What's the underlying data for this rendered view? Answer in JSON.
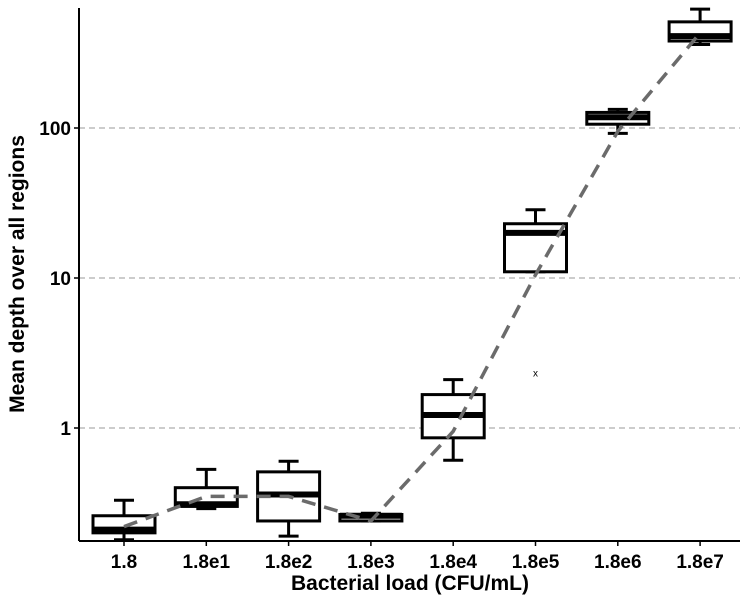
{
  "chart_data": {
    "type": "boxplot",
    "title": "",
    "xlabel": "Bacterial load (CFU/mL)",
    "ylabel": "Mean depth over all regions",
    "y_scale": "log10",
    "ylim": [
      0.18,
      700
    ],
    "y_ticks": [
      {
        "value": 1,
        "label": "1"
      },
      {
        "value": 10,
        "label": "10"
      },
      {
        "value": 100,
        "label": "100"
      }
    ],
    "grid": "horizontal-dashed",
    "categories": [
      "1.8",
      "1.8e1",
      "1.8e2",
      "1.8e3",
      "1.8e4",
      "1.8e5",
      "1.8e6",
      "1.8e7"
    ],
    "boxes": [
      {
        "category": "1.8",
        "whisker_low": 0.18,
        "q1": 0.2,
        "median": 0.21,
        "q3": 0.26,
        "whisker_high": 0.33
      },
      {
        "category": "1.8e1",
        "whisker_low": 0.29,
        "q1": 0.3,
        "median": 0.31,
        "q3": 0.4,
        "whisker_high": 0.53
      },
      {
        "category": "1.8e2",
        "whisker_low": 0.19,
        "q1": 0.24,
        "median": 0.36,
        "q3": 0.51,
        "whisker_high": 0.6
      },
      {
        "category": "1.8e3",
        "whisker_low": 0.24,
        "q1": 0.24,
        "median": 0.26,
        "q3": 0.265,
        "whisker_high": 0.27
      },
      {
        "category": "1.8e4",
        "whisker_low": 0.61,
        "q1": 0.86,
        "median": 1.22,
        "q3": 1.67,
        "whisker_high": 2.1
      },
      {
        "category": "1.8e5",
        "whisker_low": 11,
        "q1": 11,
        "median": 20,
        "q3": 23,
        "whisker_high": 28.5
      },
      {
        "category": "1.8e6",
        "whisker_low": 92,
        "q1": 106,
        "median": 118,
        "q3": 127,
        "whisker_high": 133
      },
      {
        "category": "1.8e7",
        "whisker_low": 360,
        "q1": 380,
        "median": 410,
        "q3": 510,
        "whisker_high": 620
      }
    ],
    "trend_line": {
      "style": "dashed",
      "color": "#6b6b6b",
      "values": [
        0.22,
        0.35,
        0.35,
        0.24,
        0.95,
        10.5,
        95,
        430
      ]
    },
    "annotations": [
      {
        "text": "x",
        "category": "1.8e5",
        "value": 2.3
      }
    ],
    "colors": {
      "box_stroke": "#000000",
      "box_fill": "#ffffff",
      "grid": "#9a9a9a",
      "trend": "#6b6b6b"
    }
  }
}
